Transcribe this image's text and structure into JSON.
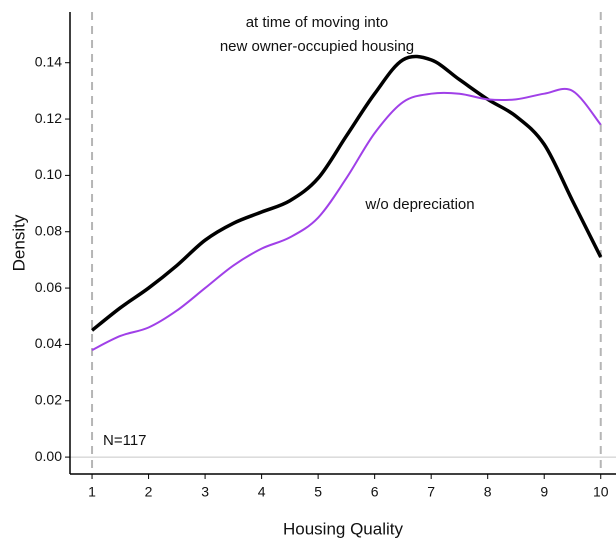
{
  "chart_data": {
    "type": "line",
    "x_label": "Housing Quality",
    "y_label": "Density",
    "annotations": [
      "at time of moving into",
      "new owner-occupied housing",
      "w/o depreciation",
      "N=117"
    ],
    "x": [
      1,
      1.5,
      2,
      2.5,
      3,
      3.5,
      4,
      4.5,
      5,
      5.5,
      6,
      6.5,
      7,
      7.5,
      8,
      8.5,
      9,
      9.5,
      10
    ],
    "series": [
      {
        "color": "#000000",
        "values": [
          0.045,
          0.053,
          0.06,
          0.068,
          0.077,
          0.083,
          0.087,
          0.091,
          0.099,
          0.114,
          0.129,
          0.141,
          0.141,
          0.134,
          0.127,
          0.121,
          0.111,
          0.091,
          0.071
        ]
      },
      {
        "color": "#a040e8",
        "values": [
          0.038,
          0.043,
          0.046,
          0.052,
          0.06,
          0.068,
          0.074,
          0.078,
          0.085,
          0.099,
          0.115,
          0.126,
          0.129,
          0.129,
          0.127,
          0.127,
          0.129,
          0.13,
          0.118
        ]
      }
    ],
    "xlim": [
      0.61,
      10.27
    ],
    "ylim": [
      -0.006,
      0.158
    ],
    "xticks": [
      1,
      2,
      3,
      4,
      5,
      6,
      7,
      8,
      9,
      10
    ],
    "yticks": [
      {
        "value": 0,
        "label": "0.00"
      },
      {
        "value": 0.02,
        "label": "0.02"
      },
      {
        "value": 0.04,
        "label": "0.04"
      },
      {
        "value": 0.06,
        "label": "0.06"
      },
      {
        "value": 0.08,
        "label": "0.08"
      },
      {
        "value": 0.1,
        "label": "0.10"
      },
      {
        "value": 0.12,
        "label": "0.12"
      },
      {
        "value": 0.14,
        "label": "0.14"
      }
    ],
    "vlines": [
      1,
      10
    ],
    "hline": 0
  }
}
